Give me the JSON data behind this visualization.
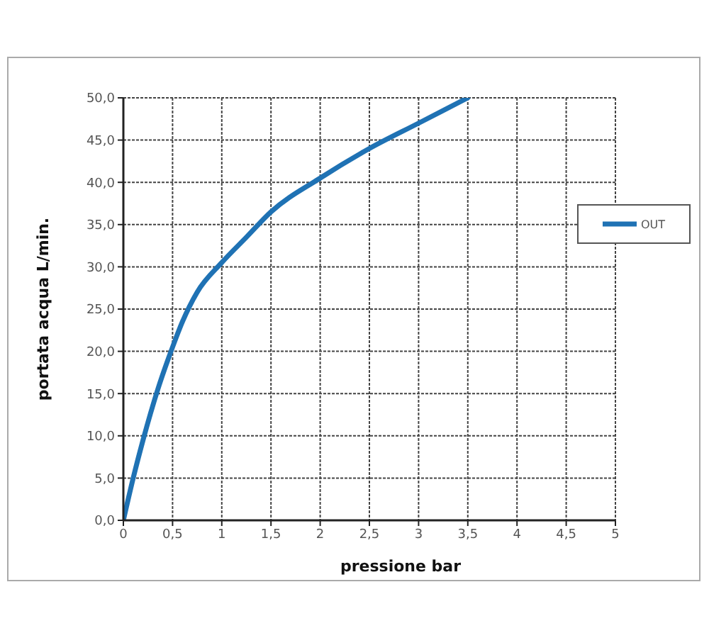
{
  "chart_data": {
    "type": "line",
    "xlabel": "pressione bar",
    "ylabel": "portata acqua L/min.",
    "x": [
      0,
      0.1,
      0.2,
      0.35,
      0.5,
      0.6,
      0.75,
      1,
      1.25,
      1.5,
      2,
      2.5,
      3,
      3.5
    ],
    "series": [
      {
        "name": "OUT",
        "color": "#1f72b4",
        "values": [
          0,
          5,
          9.5,
          15.5,
          20.5,
          23.5,
          27,
          30.5,
          33.5,
          36.5,
          40.5,
          44,
          47,
          50
        ]
      }
    ],
    "xlim": [
      0,
      5
    ],
    "xticks": [
      0,
      {
        "value": 0.5,
        "label": "0,5"
      },
      1,
      {
        "value": 1.5,
        "label": "1,5"
      },
      2,
      {
        "value": 2.5,
        "label": "2,5"
      },
      3,
      {
        "value": 3.5,
        "label": "3,5"
      },
      4,
      {
        "value": 4.5,
        "label": "4,5"
      },
      5
    ],
    "ylim": [
      0,
      50
    ],
    "yticks": [
      {
        "value": 0,
        "label": "0,0"
      },
      {
        "value": 5,
        "label": "5,0"
      },
      {
        "value": 10,
        "label": "10,0"
      },
      {
        "value": 15,
        "label": "15,0"
      },
      {
        "value": 20,
        "label": "20,0"
      },
      {
        "value": 25,
        "label": "25,0"
      },
      {
        "value": 30,
        "label": "30,0"
      },
      {
        "value": 35,
        "label": "35,0"
      },
      {
        "value": 40,
        "label": "40,0"
      },
      {
        "value": 45,
        "label": "45,0"
      },
      {
        "value": 50,
        "label": "50,0"
      }
    ],
    "grid": true,
    "legend": "right",
    "marker": "none",
    "line_style": "solid"
  }
}
